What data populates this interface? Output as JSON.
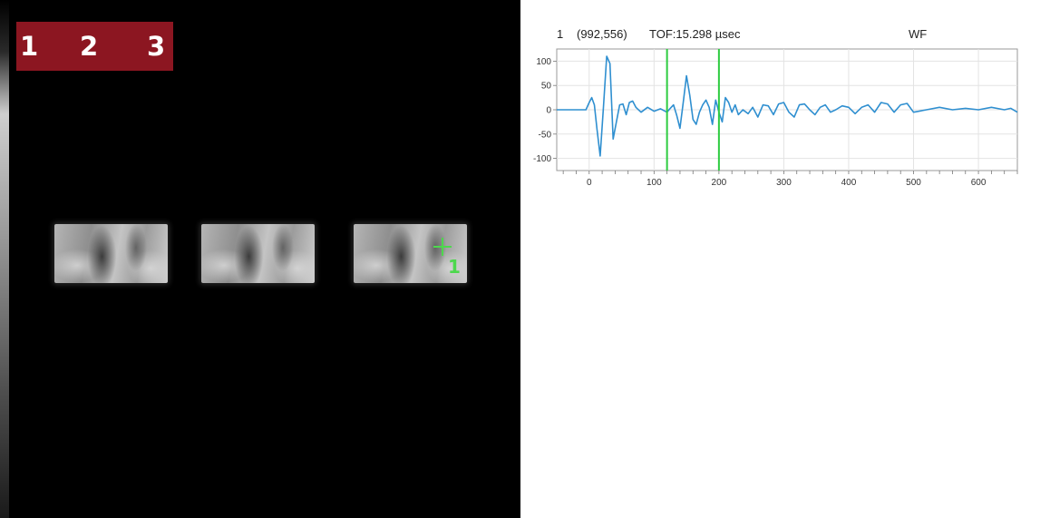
{
  "scan_image": {
    "banner_labels": [
      "1",
      "2",
      "3"
    ],
    "banner_color": "#8c1621",
    "cursor_marker": {
      "icon": "crosshair-icon",
      "label": "1",
      "color": "#4dd84d"
    }
  },
  "waveform_header": {
    "channel": "1",
    "coords": "(992,556)",
    "tof": "TOF:15.298 µsec",
    "mode": "WF"
  },
  "chart_data": {
    "type": "line",
    "title": "",
    "xlabel": "",
    "ylabel": "",
    "xlim": [
      -50,
      660
    ],
    "ylim": [
      -125,
      125
    ],
    "grid": true,
    "x_ticks": [
      0,
      100,
      200,
      300,
      400,
      500,
      600
    ],
    "y_ticks": [
      100,
      50,
      0,
      -50,
      -100
    ],
    "gates": [
      120,
      200
    ],
    "gate_color": "#2ecc40",
    "line_color": "#2f8fd0",
    "series": [
      {
        "x": [
          -50,
          -5,
          0,
          4,
          8,
          12,
          17,
          22,
          27,
          32,
          37,
          42,
          47,
          52,
          57,
          62,
          67,
          72,
          80,
          90,
          100,
          110,
          120,
          125,
          130,
          135,
          140,
          145,
          150,
          155,
          160,
          165,
          170,
          175,
          180,
          185,
          190,
          195,
          200,
          205,
          210,
          215,
          220,
          225,
          230,
          237,
          245,
          252,
          260,
          268,
          276,
          284,
          292,
          300,
          308,
          316,
          324,
          332,
          340,
          348,
          356,
          364,
          372,
          380,
          390,
          400,
          410,
          420,
          430,
          440,
          450,
          460,
          470,
          480,
          490,
          500,
          520,
          540,
          560,
          580,
          600,
          620,
          640,
          650,
          660
        ],
        "y": [
          0,
          0,
          15,
          25,
          10,
          -40,
          -95,
          5,
          110,
          95,
          -60,
          -25,
          10,
          12,
          -10,
          15,
          18,
          5,
          -5,
          5,
          -3,
          2,
          -5,
          3,
          10,
          -12,
          -38,
          15,
          70,
          30,
          -20,
          -30,
          -5,
          10,
          20,
          5,
          -30,
          20,
          -5,
          -25,
          25,
          15,
          -5,
          10,
          -10,
          0,
          -8,
          5,
          -15,
          10,
          8,
          -10,
          12,
          15,
          -5,
          -15,
          10,
          12,
          0,
          -10,
          5,
          10,
          -5,
          0,
          8,
          5,
          -8,
          5,
          10,
          -5,
          15,
          12,
          -5,
          10,
          13,
          -5,
          0,
          5,
          0,
          3,
          0,
          5,
          0,
          3,
          -5
        ]
      }
    ]
  }
}
